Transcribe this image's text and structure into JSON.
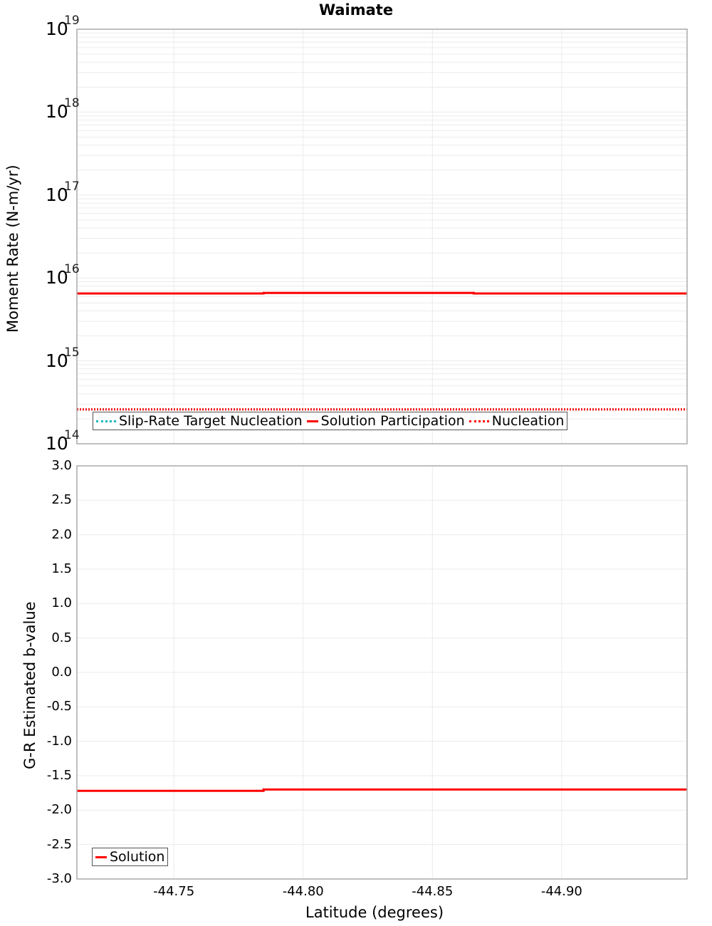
{
  "chart_title": "Waimate",
  "colors": {
    "solution": "#ff0000",
    "nucleation": "#ff0000",
    "slip_rate_target": "#17b8c2",
    "grid": "#ebebeb",
    "axis_border": "#aaaaaa"
  },
  "top_plot": {
    "ylabel": "Moment Rate (N-m/yr)",
    "ytick_labels": [
      {
        "base": "10",
        "exp": "19"
      },
      {
        "base": "10",
        "exp": "18"
      },
      {
        "base": "10",
        "exp": "17"
      },
      {
        "base": "10",
        "exp": "16"
      },
      {
        "base": "10",
        "exp": "15"
      },
      {
        "base": "10",
        "exp": "14"
      }
    ],
    "legend": [
      {
        "label": "Slip-Rate Target Nucleation",
        "style": "dotted-cyan"
      },
      {
        "label": "Solution Participation",
        "style": "solid-red"
      },
      {
        "label": "Nucleation",
        "style": "dotted-red"
      }
    ]
  },
  "bottom_plot": {
    "ylabel": "G-R Estimated b-value",
    "ytick_labels": [
      "3.0",
      "2.5",
      "2.0",
      "1.5",
      "1.0",
      "0.5",
      "0.0",
      "-0.5",
      "-1.0",
      "-1.5",
      "-2.0",
      "-2.5",
      "-3.0"
    ],
    "legend": [
      {
        "label": "Solution",
        "style": "solid-red"
      }
    ]
  },
  "x_axis": {
    "label": "Latitude (degrees)",
    "tick_labels": [
      "-44.75",
      "-44.80",
      "-44.85",
      "-44.90"
    ]
  },
  "chart_data": [
    {
      "type": "line",
      "title": "Waimate",
      "xlabel": "Latitude (degrees)",
      "ylabel": "Moment Rate (N-m/yr)",
      "yscale": "log",
      "ylim": [
        100000000000000.0,
        1e+19
      ],
      "xlim": [
        -44.7125,
        -44.9485
      ],
      "grid": true,
      "legend_position": "lower-left",
      "series": [
        {
          "name": "Slip-Rate Target Nucleation",
          "style": "dotted",
          "color": "#17b8c2",
          "x": [
            -44.7125,
            -44.7847,
            -44.7847,
            -44.866,
            -44.866,
            -44.9485
          ],
          "y": [
            260000000000000.0,
            260000000000000.0,
            260000000000000.0,
            260000000000000.0,
            260000000000000.0,
            260000000000000.0
          ]
        },
        {
          "name": "Solution Participation",
          "style": "solid",
          "color": "#ff0000",
          "x": [
            -44.7125,
            -44.7847,
            -44.7847,
            -44.866,
            -44.866,
            -44.9485
          ],
          "y": [
            6500000000000000.0,
            6500000000000000.0,
            6600000000000000.0,
            6600000000000000.0,
            6500000000000000.0,
            6500000000000000.0
          ]
        },
        {
          "name": "Nucleation",
          "style": "dotted",
          "color": "#ff0000",
          "x": [
            -44.7125,
            -44.7847,
            -44.7847,
            -44.866,
            -44.866,
            -44.9485
          ],
          "y": [
            260000000000000.0,
            260000000000000.0,
            260000000000000.0,
            260000000000000.0,
            260000000000000.0,
            260000000000000.0
          ]
        }
      ]
    },
    {
      "type": "line",
      "xlabel": "Latitude (degrees)",
      "ylabel": "G-R Estimated b-value",
      "ylim": [
        -3.0,
        3.0
      ],
      "xlim": [
        -44.7125,
        -44.9485
      ],
      "xticks": [
        -44.75,
        -44.8,
        -44.85,
        -44.9
      ],
      "yticks": [
        3.0,
        2.5,
        2.0,
        1.5,
        1.0,
        0.5,
        0.0,
        -0.5,
        -1.0,
        -1.5,
        -2.0,
        -2.5,
        -3.0
      ],
      "grid": true,
      "legend_position": "lower-left",
      "series": [
        {
          "name": "Solution",
          "style": "solid",
          "color": "#ff0000",
          "x": [
            -44.7125,
            -44.7847,
            -44.7847,
            -44.866,
            -44.866,
            -44.9485
          ],
          "y": [
            -1.72,
            -1.72,
            -1.7,
            -1.7,
            -1.7,
            -1.7
          ]
        }
      ]
    }
  ]
}
